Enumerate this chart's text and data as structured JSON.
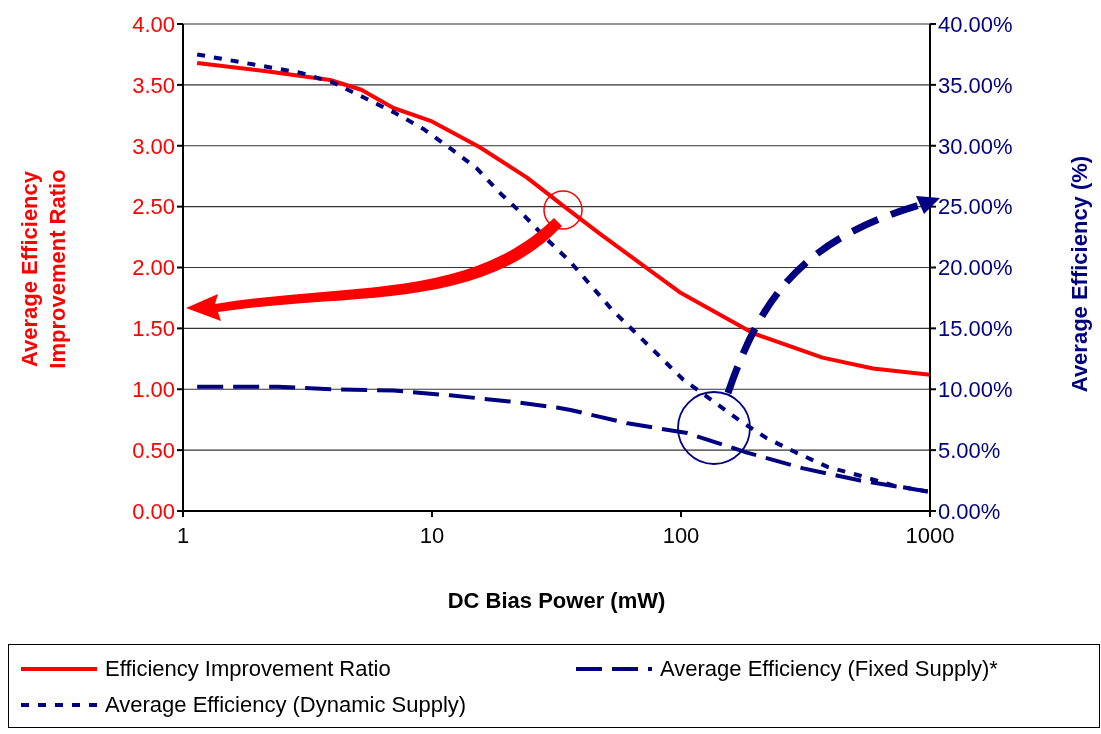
{
  "chart_data": {
    "type": "line",
    "xlabel": "DC Bias Power (mW)",
    "ylabel": "Average Efficiency Improvement Ratio",
    "y2label": "Average Efficiency (%)",
    "xlim": [
      1,
      1000
    ],
    "xticks": [
      1,
      10,
      100,
      1000
    ],
    "log": "x",
    "grid": true,
    "legend": "bottom",
    "marker": "none",
    "ylim": [
      0,
      4
    ],
    "yticks": [
      {
        "value": 0,
        "label": "0.00"
      },
      {
        "value": 0.5,
        "label": "0.50"
      },
      {
        "value": 1,
        "label": "1.00"
      },
      {
        "value": 1.5,
        "label": "1.50"
      },
      {
        "value": 2,
        "label": "2.00"
      },
      {
        "value": 2.5,
        "label": "2.50"
      },
      {
        "value": 3,
        "label": "3.00"
      },
      {
        "value": 3.5,
        "label": "3.50"
      },
      {
        "value": 4,
        "label": "4.00"
      }
    ],
    "y2lim": [
      0,
      40
    ],
    "y2ticks": [
      {
        "value": 0,
        "label": "0.00%"
      },
      {
        "value": 5,
        "label": "5.00%"
      },
      {
        "value": 10,
        "label": "10.00%"
      },
      {
        "value": 15,
        "label": "15.00%"
      },
      {
        "value": 20,
        "label": "20.00%"
      },
      {
        "value": 25,
        "label": "25.00%"
      },
      {
        "value": 30,
        "label": "30.00%"
      },
      {
        "value": 35,
        "label": "35.00%"
      },
      {
        "value": 40,
        "label": "40.00%"
      }
    ],
    "series": [
      {
        "name": "Efficiency Improvement Ratio",
        "color": "#ff0000",
        "line_style": "solid",
        "x": [
          1.14,
          2.2,
          3.9,
          5.2,
          7,
          10,
          15.5,
          24,
          34,
          47,
          100,
          195,
          370,
          590,
          1000
        ],
        "values": [
          3.68,
          3.61,
          3.54,
          3.46,
          3.31,
          3.2,
          2.99,
          2.74,
          2.5,
          2.28,
          1.79,
          1.46,
          1.26,
          1.17,
          1.12
        ]
      },
      {
        "name": "Average Efficiency (Fixed Supply)*",
        "color": "#000080",
        "line_style": "dashed",
        "axis": "y2",
        "x": [
          1.14,
          2.4,
          4,
          7,
          11.8,
          20.5,
          31.7,
          36,
          61,
          106,
          184,
          310,
          525,
          980
        ],
        "values": [
          10.2,
          10.2,
          10,
          9.9,
          9.5,
          9,
          8.5,
          8.3,
          7.2,
          6.4,
          4.8,
          3.5,
          2.5,
          1.6
        ]
      },
      {
        "name": "Average Efficiency (Dynamic Supply)",
        "color": "#000080",
        "line_style": "dotted",
        "axis": "y2",
        "x": [
          1.14,
          2.95,
          4,
          5.4,
          7.1,
          9.2,
          12,
          15.2,
          18.8,
          23.6,
          29,
          35.8,
          44,
          53,
          66,
          83,
          102,
          133,
          170,
          220,
          290,
          390,
          525,
          710,
          980
        ],
        "values": [
          37.5,
          36,
          35.2,
          33.9,
          32.7,
          31.4,
          29.7,
          28.1,
          26.1,
          24.2,
          22.3,
          20.5,
          18.4,
          16.5,
          14.6,
          12.6,
          10.8,
          9.1,
          7.5,
          6,
          4.8,
          3.6,
          2.9,
          2.1,
          1.6
        ]
      }
    ]
  }
}
